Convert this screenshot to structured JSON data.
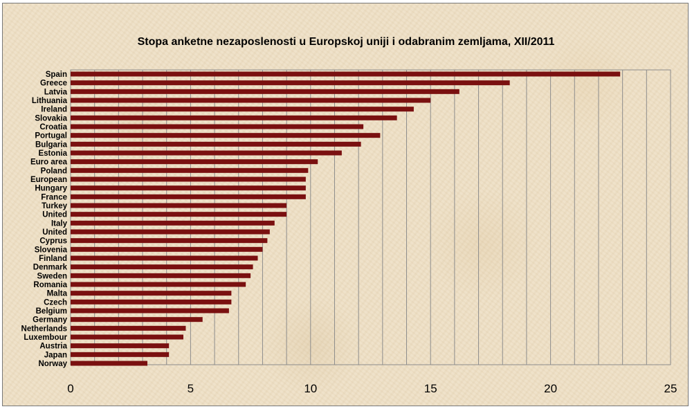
{
  "chart_data": {
    "type": "bar",
    "orientation": "horizontal",
    "title": "Stopa anketne nezaposlenosti u Europskoj uniji i odabranim zemljama, XII/2011",
    "categories": [
      "Spain",
      "Greece",
      "Latvia",
      "Lithuania",
      "Ireland",
      "Slovakia",
      "Croatia",
      "Portugal",
      "Bulgaria",
      "Estonia",
      "Euro area",
      "Poland",
      "European",
      "Hungary",
      "France",
      "Turkey",
      "United",
      "Italy",
      "United",
      "Cyprus",
      "Slovenia",
      "Finland",
      "Denmark",
      "Sweden",
      "Romania",
      "Malta",
      "Czech",
      "Belgium",
      "Germany",
      "Netherlands",
      "Luxembour",
      "Austria",
      "Japan",
      "Norway"
    ],
    "values": [
      22.9,
      18.3,
      16.2,
      15.0,
      14.3,
      13.6,
      12.2,
      12.9,
      12.1,
      11.3,
      10.3,
      9.9,
      9.8,
      9.8,
      9.8,
      9.0,
      9.0,
      8.5,
      8.3,
      8.2,
      8.0,
      7.8,
      7.6,
      7.5,
      7.3,
      6.7,
      6.7,
      6.6,
      5.5,
      4.8,
      4.7,
      4.1,
      4.1,
      3.2
    ],
    "x_ticks": [
      "0",
      "5",
      "10",
      "15",
      "20",
      "25"
    ],
    "xlim": [
      0,
      25
    ],
    "gridlines": "vertical every 1 unit",
    "bar_color": "#7a1010",
    "plot_background": "transparent (parchment texture)"
  }
}
